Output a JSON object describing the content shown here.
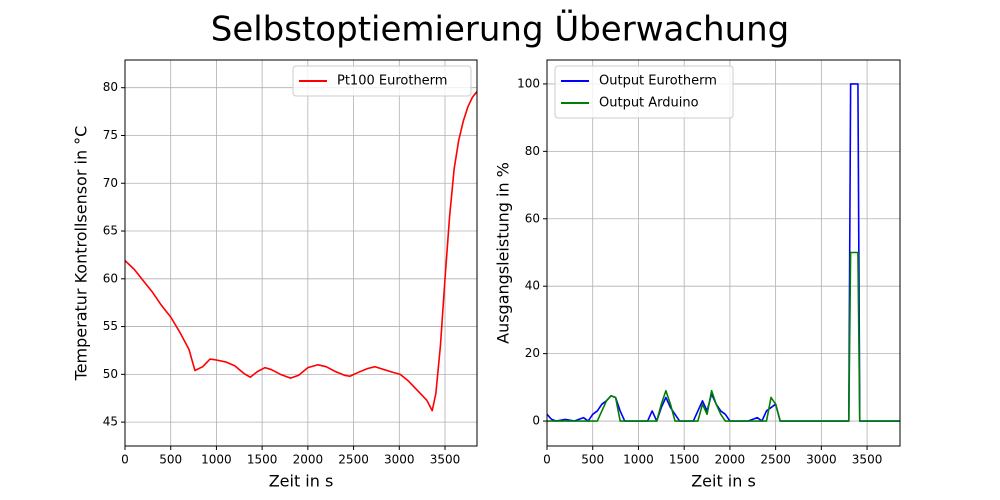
{
  "title": "Selbstoptiemierung Überwachung",
  "chart_data": [
    {
      "type": "line",
      "xlabel": "Zeit in s",
      "ylabel": "Temperatur Kontrollsensor in °C",
      "x": [
        0,
        100,
        200,
        300,
        400,
        500,
        600,
        700,
        765,
        850,
        930,
        1000,
        1100,
        1200,
        1300,
        1370,
        1450,
        1530,
        1600,
        1700,
        1810,
        1900,
        2000,
        2110,
        2200,
        2300,
        2400,
        2460,
        2550,
        2650,
        2735,
        2800,
        2900,
        3010,
        3100,
        3200,
        3300,
        3360,
        3400,
        3450,
        3500,
        3550,
        3600,
        3650,
        3700,
        3750,
        3800,
        3850
      ],
      "series": [
        {
          "name": "Pt100 Eurotherm",
          "color": "#ff0000",
          "values": [
            61.9,
            61.0,
            59.8,
            58.6,
            57.2,
            56.0,
            54.4,
            52.6,
            50.4,
            50.8,
            51.6,
            51.5,
            51.3,
            50.9,
            50.1,
            49.7,
            50.3,
            50.7,
            50.5,
            50.0,
            49.6,
            49.9,
            50.7,
            51.0,
            50.8,
            50.3,
            49.9,
            49.8,
            50.2,
            50.6,
            50.8,
            50.6,
            50.3,
            50.0,
            49.3,
            48.3,
            47.3,
            46.2,
            48.0,
            53.0,
            60.0,
            66.5,
            71.5,
            74.5,
            76.5,
            78.0,
            79.0,
            79.6
          ]
        }
      ],
      "xlim": [
        0,
        3850
      ],
      "ylim": [
        42.5,
        82.9
      ],
      "xticks": [
        0,
        500,
        1000,
        1500,
        2000,
        2500,
        3000,
        3500
      ],
      "yticks": [
        45,
        50,
        55,
        60,
        65,
        70,
        75,
        80
      ],
      "grid": true,
      "legend": "upper right"
    },
    {
      "type": "line",
      "xlabel": "Zeit in s",
      "ylabel": "Ausgangsleistung in %",
      "x": [
        0,
        50,
        100,
        200,
        300,
        400,
        450,
        500,
        550,
        600,
        650,
        700,
        750,
        800,
        850,
        900,
        1000,
        1100,
        1150,
        1200,
        1250,
        1300,
        1350,
        1400,
        1450,
        1500,
        1600,
        1650,
        1700,
        1750,
        1800,
        1850,
        1900,
        1950,
        2000,
        2100,
        2200,
        2300,
        2350,
        2400,
        2450,
        2500,
        2550,
        2600,
        3000,
        3300,
        3320,
        3400,
        3420,
        3500,
        3860
      ],
      "series": [
        {
          "name": "Output Eurotherm",
          "color": "#0000ff",
          "values": [
            2,
            0.5,
            0,
            0.5,
            0,
            1,
            0,
            2,
            3,
            5,
            6,
            7.5,
            7,
            3,
            0,
            0,
            0,
            0,
            3,
            0,
            4,
            7,
            4,
            2,
            0,
            0,
            0,
            3,
            6,
            3,
            8,
            5,
            3,
            2,
            0,
            0,
            0,
            1,
            0,
            3,
            4,
            5,
            0,
            0,
            0,
            0,
            100,
            100,
            0,
            0,
            0
          ]
        },
        {
          "name": "Output Arduino",
          "color": "#008000",
          "values": [
            0,
            0,
            0,
            0,
            0,
            0,
            0,
            0,
            0,
            3,
            6,
            7.5,
            7,
            0,
            0,
            0,
            0,
            0,
            0,
            0,
            5,
            9,
            5,
            0,
            0,
            0,
            0,
            0,
            5,
            2,
            9,
            5,
            2,
            0,
            0,
            0,
            0,
            0,
            0,
            0,
            7,
            5,
            0,
            0,
            0,
            0,
            50,
            50,
            0,
            0,
            0
          ]
        }
      ],
      "xlim": [
        0,
        3860
      ],
      "ylim": [
        -7.4,
        107.1
      ],
      "xticks": [
        0,
        500,
        1000,
        1500,
        2000,
        2500,
        3000,
        3500
      ],
      "yticks": [
        0,
        20,
        40,
        60,
        80,
        100
      ],
      "grid": true,
      "legend": "upper left"
    }
  ]
}
